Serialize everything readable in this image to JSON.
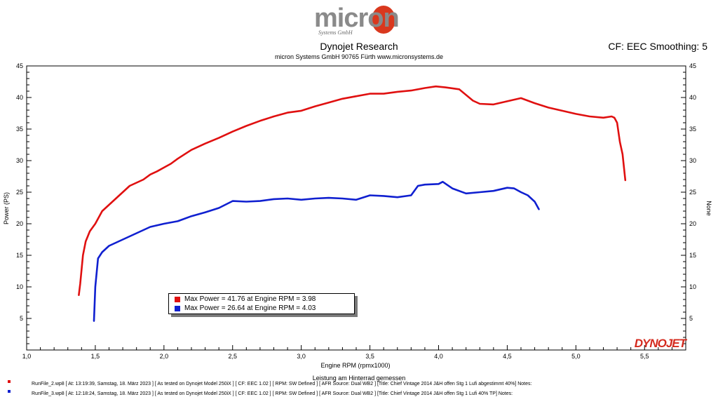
{
  "logo": {
    "text": "micron",
    "subtext": "Systems GmbH"
  },
  "header": {
    "title": "Dynojet Research",
    "subtitle": "micron Systems GmbH  90765 Fürth www.micronsystems.de",
    "cf_label": "CF: EEC Smoothing: 5"
  },
  "brand_logo": "DYNOJET",
  "legend": {
    "entries": [
      {
        "text": "Max Power = 41.76 at Engine RPM = 3.98",
        "color": "#e01010"
      },
      {
        "text": "Max Power = 26.64 at Engine RPM = 4.03",
        "color": "#1020d0"
      }
    ]
  },
  "runs": [
    {
      "text": "RunFile_2.wp8  [ At:  13:19:39, Samstag, 18. März 2023 ] [ As tested on Dynojet Model 250iX ] [  CF:  EEC  1.02 ] [  RPM:  SW Defined ] [  AFR Source:  Dual WB2 ] [Title:  Chief Vintage 2014 J&H offen Stg 1 Lufi abgestimmt 40%]   Notes:",
      "color": "#e01010"
    },
    {
      "text": "RunFile_3.wp8  [ At:  12:18:24, Samstag, 18. März 2023 ] [ As tested on Dynojet Model 250iX ] [  CF:  EEC  1.02 ] [  RPM:  SW Defined ] [  AFR Source:  Dual WB2 ] [Title:  Chief Vintage 2014 J&H offen Stg 1 Lufi 40%  TP]   Notes:",
      "color": "#1020d0"
    }
  ],
  "chart_data": {
    "type": "line",
    "xlabel": "Engine RPM (rpmx1000)",
    "xlabel2": "Leistung am Hinterrad gemessen",
    "ylabel": "Power (PS)",
    "ylabel_right": "None",
    "xlim": [
      1.0,
      5.8
    ],
    "ylim": [
      0,
      45
    ],
    "x_ticks": [
      "1,0",
      "1,5",
      "2,0",
      "2,5",
      "3,0",
      "3,5",
      "4,0",
      "4,5",
      "5,0",
      "5,5"
    ],
    "y_ticks": [
      "5",
      "10",
      "15",
      "20",
      "25",
      "30",
      "35",
      "40",
      "45"
    ],
    "grid": false,
    "legend_position": "lower-left",
    "series": [
      {
        "color": "#e01010",
        "x": [
          1.38,
          1.39,
          1.41,
          1.43,
          1.46,
          1.5,
          1.55,
          1.6,
          1.65,
          1.7,
          1.75,
          1.8,
          1.85,
          1.9,
          1.95,
          2.0,
          2.05,
          2.1,
          2.2,
          2.3,
          2.4,
          2.5,
          2.6,
          2.7,
          2.8,
          2.9,
          3.0,
          3.1,
          3.2,
          3.3,
          3.4,
          3.5,
          3.6,
          3.7,
          3.8,
          3.9,
          3.98,
          4.05,
          4.15,
          4.25,
          4.3,
          4.4,
          4.5,
          4.6,
          4.7,
          4.8,
          4.9,
          5.0,
          5.1,
          5.2,
          5.26,
          5.28,
          5.3,
          5.32,
          5.34,
          5.36
        ],
        "y": [
          8.7,
          10.5,
          15.0,
          17.2,
          18.8,
          20.0,
          22.0,
          23.0,
          24.0,
          25.0,
          26.0,
          26.5,
          27.0,
          27.8,
          28.3,
          28.9,
          29.5,
          30.3,
          31.7,
          32.7,
          33.6,
          34.6,
          35.5,
          36.3,
          37.0,
          37.6,
          37.9,
          38.6,
          39.2,
          39.8,
          40.2,
          40.6,
          40.6,
          40.9,
          41.1,
          41.5,
          41.76,
          41.6,
          41.3,
          39.5,
          39.0,
          38.9,
          39.4,
          39.9,
          39.1,
          38.4,
          37.9,
          37.4,
          37.0,
          36.8,
          37.0,
          36.8,
          36.0,
          33.0,
          31.0,
          26.9
        ]
      },
      {
        "color": "#1020d0",
        "x": [
          1.49,
          1.5,
          1.52,
          1.55,
          1.6,
          1.65,
          1.7,
          1.75,
          1.8,
          1.85,
          1.9,
          2.0,
          2.1,
          2.2,
          2.3,
          2.4,
          2.5,
          2.6,
          2.7,
          2.8,
          2.9,
          3.0,
          3.1,
          3.2,
          3.3,
          3.4,
          3.5,
          3.6,
          3.7,
          3.8,
          3.85,
          3.9,
          4.0,
          4.03,
          4.1,
          4.2,
          4.3,
          4.4,
          4.5,
          4.55,
          4.6,
          4.65,
          4.7,
          4.73
        ],
        "y": [
          4.6,
          10.0,
          14.5,
          15.5,
          16.5,
          17.0,
          17.5,
          18.0,
          18.5,
          19.0,
          19.5,
          20.0,
          20.4,
          21.2,
          21.8,
          22.5,
          23.6,
          23.5,
          23.6,
          23.9,
          24.0,
          23.8,
          24.0,
          24.1,
          24.0,
          23.8,
          24.5,
          24.4,
          24.2,
          24.5,
          26.0,
          26.2,
          26.3,
          26.64,
          25.6,
          24.8,
          25.0,
          25.2,
          25.7,
          25.6,
          25.0,
          24.5,
          23.5,
          22.3
        ]
      }
    ]
  }
}
